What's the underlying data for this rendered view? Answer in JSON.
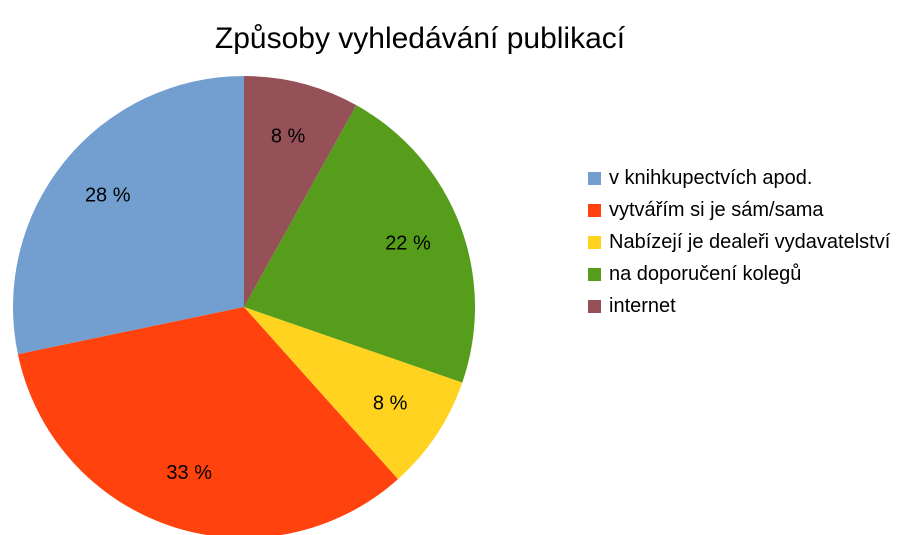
{
  "chart_data": {
    "type": "pie",
    "title": "Způsoby vyhledávání publikací",
    "categories": [
      "v knihkupectvích apod.",
      "vytvářím si je sám/sama",
      "Nabízejí je dealeři vydavatelství",
      "na doporučení kolegů",
      "internet"
    ],
    "values": [
      28,
      33,
      8,
      22,
      8
    ],
    "value_labels": [
      "28 %",
      "33 %",
      "8 %",
      "22 %",
      "8 %"
    ],
    "colors": [
      "#729fcf",
      "#ff420e",
      "#ffd320",
      "#579d1c",
      "#955058"
    ],
    "legend": "right"
  }
}
